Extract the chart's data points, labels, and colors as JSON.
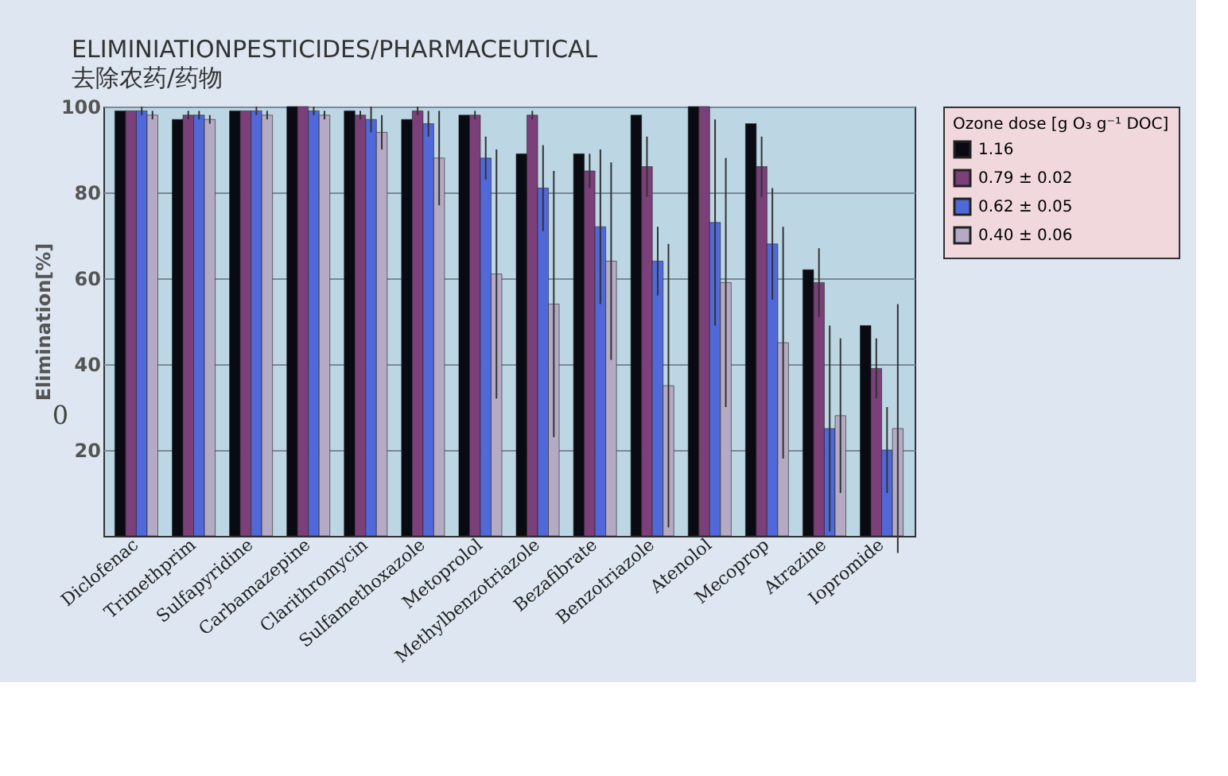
{
  "chart_data": {
    "type": "bar",
    "title": "ELIMINIATIONPESTICIDES/PHARMACEUTICAL",
    "subtitle": "去除农药/药物",
    "ylabel": "Elimination[%]",
    "legend_title": "Ozone dose [g O₃ g⁻¹ DOC]",
    "categories": [
      "Diclofenac",
      "Trimethprim",
      "Sulfapyridine",
      "Carbamazepine",
      "Clarithromycin",
      "Sulfamethoxazole",
      "Metoprolol",
      "Methylbenzotriazole",
      "Bezafibrate",
      "Benzotriazole",
      "Atenolol",
      "Mecoprop",
      "Atrazine",
      "Iopromide"
    ],
    "series": [
      {
        "name": "1.16",
        "color": "#0a0a12",
        "values": [
          99,
          97,
          99,
          100,
          99,
          97,
          98,
          89,
          89,
          98,
          100,
          96,
          62,
          49
        ]
      },
      {
        "name": "0.79 ± 0.02",
        "color": "#7b3f7a",
        "values": [
          99,
          98,
          99,
          100,
          98,
          99,
          98,
          98,
          85,
          86,
          100,
          86,
          59,
          39
        ],
        "errors": [
          null,
          1,
          null,
          null,
          1,
          1,
          1,
          1,
          4,
          7,
          null,
          7,
          8,
          7
        ]
      },
      {
        "name": "0.62 ± 0.05",
        "color": "#5068d8",
        "values": [
          99,
          98,
          99,
          99,
          97,
          96,
          88,
          81,
          72,
          64,
          73,
          68,
          25,
          20
        ],
        "errors": [
          1,
          1,
          1,
          1,
          3,
          3,
          5,
          10,
          18,
          8,
          24,
          13,
          24,
          10
        ]
      },
      {
        "name": "0.40 ± 0.06",
        "color": "#b4aac4",
        "values": [
          98,
          97,
          98,
          98,
          94,
          88,
          61,
          54,
          64,
          35,
          59,
          45,
          28,
          25
        ],
        "errors": [
          1,
          1,
          1,
          1,
          4,
          11,
          29,
          31,
          23,
          33,
          29,
          27,
          18,
          29
        ]
      }
    ],
    "ylim": [
      0,
      100
    ],
    "yticks": [
      20,
      40,
      60,
      80,
      100
    ],
    "grid": "y",
    "legend": "top right",
    "annotations": [
      "0"
    ]
  }
}
